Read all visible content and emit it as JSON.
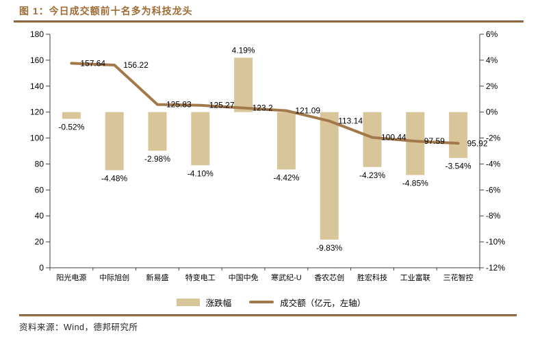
{
  "title": "图 1：今日成交额前十名多为科技龙头",
  "source": "资料来源：Wind，德邦研究所",
  "legend": {
    "bar_label": "涨跌幅",
    "line_label": "成交额（亿元，左轴）"
  },
  "colors": {
    "bar": "#D8C69A",
    "line": "#A3794B",
    "title_accent": "#9E6B35",
    "rule_dark": "#54371A",
    "rule_light": "#A3794B",
    "axis": "#404040",
    "label_text": "#000000"
  },
  "chart_data": {
    "type": "bar+line",
    "title": "今日成交额前十名多为科技龙头",
    "categories": [
      "阳光电源",
      "中际旭创",
      "新易盛",
      "特变电工",
      "中国中免",
      "寒武纪-U",
      "香农芯创",
      "胜宏科技",
      "工业富联",
      "三花智控"
    ],
    "series": [
      {
        "name": "涨跌幅",
        "type": "bar",
        "axis": "right",
        "values_pct": [
          -0.52,
          -4.48,
          -2.98,
          -4.1,
          4.19,
          -4.42,
          -9.83,
          -4.23,
          -4.85,
          -3.54
        ],
        "labels": [
          "-0.52%",
          "-4.48%",
          "-2.98%",
          "-4.10%",
          "4.19%",
          "-4.42%",
          "-9.83%",
          "-4.23%",
          "-4.85%",
          "-3.54%"
        ]
      },
      {
        "name": "成交额（亿元，左轴）",
        "type": "line",
        "axis": "left",
        "values": [
          157.64,
          156.22,
          125.83,
          125.27,
          123.2,
          121.09,
          113.14,
          100.44,
          97.59,
          95.92
        ],
        "labels": [
          "157.64",
          "156.22",
          "125.83",
          "125.27",
          "123.2",
          "121.09",
          "113.14",
          "100.44",
          "97.59",
          "95.92"
        ]
      }
    ],
    "left_axis": {
      "min": 0,
      "max": 180,
      "step": 20,
      "ticks": [
        "0",
        "20",
        "40",
        "60",
        "80",
        "100",
        "120",
        "140",
        "160",
        "180"
      ]
    },
    "right_axis": {
      "min": -12,
      "max": 6,
      "step": 2,
      "ticks": [
        "-12%",
        "-10%",
        "-8%",
        "-6%",
        "-4%",
        "-2%",
        "0%",
        "2%",
        "4%",
        "6%"
      ]
    },
    "grid": "off",
    "legend_position": "bottom"
  }
}
